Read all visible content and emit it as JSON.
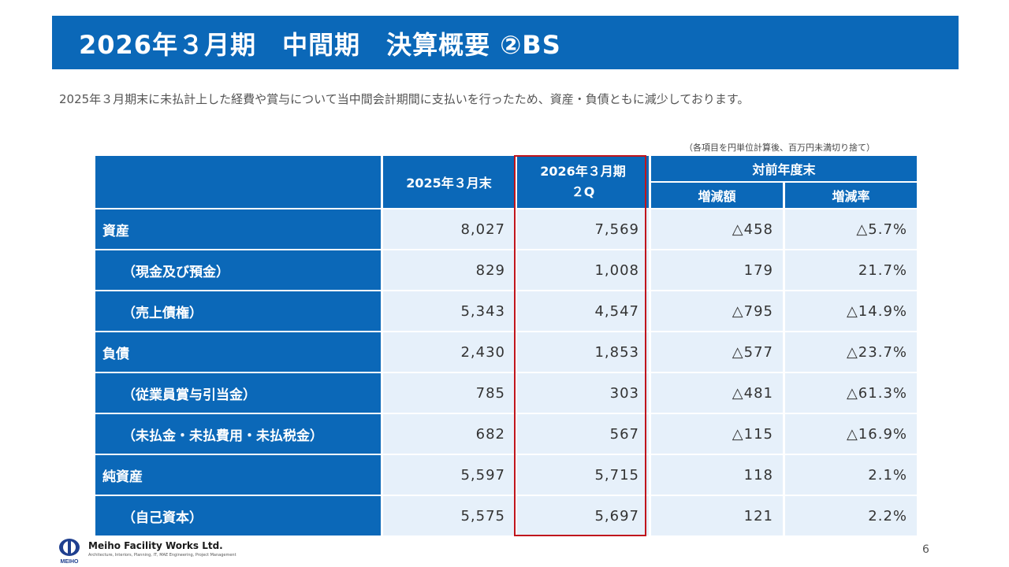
{
  "title": "2026年３月期　中間期　決算概要 ②BS",
  "subtitle": "2025年３月期末に未払計上した経費や賞与について当中間会計期間に支払いを行ったため、資産・負債ともに減少しております。",
  "note": "（各項目を円単位計算後、百万円未満切り捨て）",
  "table": {
    "col_prev": "2025年３月末",
    "col_curr": "2026年３月期\n２Q",
    "col_group": "対前年度末",
    "col_diff": "増減額",
    "col_rate": "増減率",
    "rows": [
      {
        "label": "資産",
        "sub": false,
        "prev": "8,027",
        "curr": "7,569",
        "diff": "△458",
        "rate": "△5.7%"
      },
      {
        "label": "（現金及び預金）",
        "sub": true,
        "prev": "829",
        "curr": "1,008",
        "diff": "179",
        "rate": "21.7%"
      },
      {
        "label": "（売上債権）",
        "sub": true,
        "prev": "5,343",
        "curr": "4,547",
        "diff": "△795",
        "rate": "△14.9%"
      },
      {
        "label": "負債",
        "sub": false,
        "prev": "2,430",
        "curr": "1,853",
        "diff": "△577",
        "rate": "△23.7%"
      },
      {
        "label": "（従業員賞与引当金）",
        "sub": true,
        "prev": "785",
        "curr": "303",
        "diff": "△481",
        "rate": "△61.3%"
      },
      {
        "label": "（未払金・未払費用・未払税金）",
        "sub": true,
        "prev": "682",
        "curr": "567",
        "diff": "△115",
        "rate": "△16.9%"
      },
      {
        "label": "純資産",
        "sub": false,
        "prev": "5,597",
        "curr": "5,715",
        "diff": "118",
        "rate": "2.1%"
      },
      {
        "label": "（自己資本）",
        "sub": true,
        "prev": "5,575",
        "curr": "5,697",
        "diff": "121",
        "rate": "2.2%"
      }
    ]
  },
  "footer": {
    "logo_text": "MEIHO",
    "company": "Meiho Facility Works Ltd.",
    "tagline": "Architecture, Interiors, Planning, IT, MAE Engineering, Project Management",
    "page": "6"
  },
  "colors": {
    "header_blue": "#0b68b8",
    "cell_light": "#e6f0fa",
    "highlight_red": "#c0151c"
  }
}
